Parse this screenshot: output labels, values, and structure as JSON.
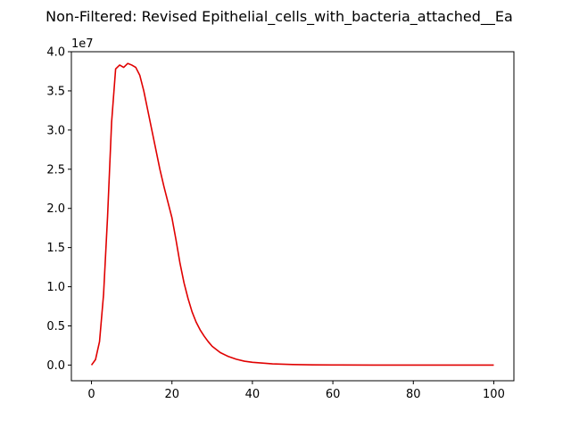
{
  "chart_data": {
    "type": "line",
    "title": "Non-Filtered: Revised Epithelial_cells_with_bacteria_attached__Ea",
    "xlabel": "",
    "ylabel": "",
    "y_offset_label": "1e7",
    "xlim": [
      -5,
      105
    ],
    "ylim": [
      -0.2,
      4.0
    ],
    "x_ticks": [
      0,
      20,
      40,
      60,
      80,
      100
    ],
    "y_ticks": [
      0.0,
      0.5,
      1.0,
      1.5,
      2.0,
      2.5,
      3.0,
      3.5,
      4.0
    ],
    "y_tick_labels": [
      "0.0",
      "0.5",
      "1.0",
      "1.5",
      "2.0",
      "2.5",
      "3.0",
      "3.5",
      "4.0"
    ],
    "grid": false,
    "series": [
      {
        "color": "#e00000",
        "x": [
          0,
          1,
          2,
          3,
          4,
          5,
          6,
          7,
          8,
          9,
          10,
          11,
          12,
          13,
          14,
          15,
          16,
          17,
          18,
          19,
          20,
          21,
          22,
          23,
          24,
          25,
          26,
          27,
          28,
          29,
          30,
          32,
          34,
          36,
          38,
          40,
          45,
          50,
          55,
          60,
          70,
          80,
          90,
          100
        ],
        "y": [
          0.0,
          0.07,
          0.3,
          0.9,
          1.9,
          3.1,
          3.78,
          3.83,
          3.8,
          3.85,
          3.83,
          3.8,
          3.7,
          3.5,
          3.25,
          3.0,
          2.75,
          2.5,
          2.28,
          2.08,
          1.88,
          1.6,
          1.3,
          1.05,
          0.85,
          0.68,
          0.55,
          0.45,
          0.37,
          0.3,
          0.24,
          0.16,
          0.11,
          0.075,
          0.05,
          0.035,
          0.015,
          0.007,
          0.003,
          0.001,
          0.0003,
          0.0001,
          0.0,
          0.0
        ]
      }
    ]
  }
}
